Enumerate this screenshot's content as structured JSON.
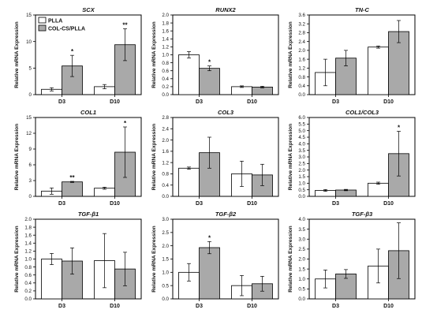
{
  "legend": {
    "series": [
      {
        "name": "PLLA",
        "color": "#ffffff"
      },
      {
        "name": "COL-CS/PLLA",
        "color": "#a9a9a9"
      }
    ]
  },
  "chart_data": [
    {
      "type": "bar",
      "title": "SCX",
      "ylabel": "Relative mRNA Expression",
      "categories": [
        "D3",
        "D10"
      ],
      "ylim": [
        0,
        15
      ],
      "yticks": [
        0,
        5,
        10,
        15
      ],
      "series": [
        {
          "name": "PLLA",
          "values": [
            1.0,
            1.5
          ],
          "errors": [
            0.3,
            0.4
          ]
        },
        {
          "name": "COL-CS/PLLA",
          "values": [
            5.4,
            9.4
          ],
          "errors": [
            2.0,
            3.0
          ]
        }
      ],
      "significance": [
        {
          "category": "D3",
          "label": "*"
        },
        {
          "category": "D10",
          "label": "**"
        }
      ]
    },
    {
      "type": "bar",
      "title": "RUNX2",
      "ylabel": "Relative mRNA Expression",
      "categories": [
        "D3",
        "D10"
      ],
      "ylim": [
        0,
        2.0
      ],
      "yticks": [
        0.0,
        0.2,
        0.4,
        0.6,
        0.8,
        1.0,
        1.2,
        1.4,
        1.6,
        1.8,
        2.0
      ],
      "series": [
        {
          "name": "PLLA",
          "values": [
            1.0,
            0.2
          ],
          "errors": [
            0.08,
            0.02
          ]
        },
        {
          "name": "COL-CS/PLLA",
          "values": [
            0.66,
            0.19
          ],
          "errors": [
            0.06,
            0.02
          ]
        }
      ],
      "significance": [
        {
          "category": "D3",
          "label": "*"
        }
      ]
    },
    {
      "type": "bar",
      "title": "TN-C",
      "ylabel": "Relative mRNA Expression",
      "categories": [
        "D3",
        "D10"
      ],
      "ylim": [
        0,
        3.6
      ],
      "yticks": [
        0.0,
        0.4,
        0.8,
        1.2,
        1.6,
        2.0,
        2.4,
        2.8,
        3.2,
        3.6
      ],
      "series": [
        {
          "name": "PLLA",
          "values": [
            1.0,
            2.15
          ],
          "errors": [
            0.6,
            0.05
          ]
        },
        {
          "name": "COL-CS/PLLA",
          "values": [
            1.65,
            2.85
          ],
          "errors": [
            0.35,
            0.5
          ]
        }
      ],
      "significance": []
    },
    {
      "type": "bar",
      "title": "COL1",
      "ylabel": "Relative mRNA Expression",
      "categories": [
        "D3",
        "D10"
      ],
      "ylim": [
        0,
        15
      ],
      "yticks": [
        0,
        3,
        6,
        9,
        12,
        15
      ],
      "series": [
        {
          "name": "PLLA",
          "values": [
            1.0,
            1.55
          ],
          "errors": [
            0.6,
            0.2
          ]
        },
        {
          "name": "COL-CS/PLLA",
          "values": [
            2.75,
            8.4
          ],
          "errors": [
            0.1,
            4.8
          ]
        }
      ],
      "significance": [
        {
          "category": "D3",
          "label": "**"
        },
        {
          "category": "D10",
          "label": "*"
        }
      ]
    },
    {
      "type": "bar",
      "title": "COL3",
      "ylabel": "Relative mRNA Expression",
      "categories": [
        "D3",
        "D10"
      ],
      "ylim": [
        0,
        2.8
      ],
      "yticks": [
        0.0,
        0.4,
        0.8,
        1.2,
        1.6,
        2.0,
        2.4,
        2.8
      ],
      "series": [
        {
          "name": "PLLA",
          "values": [
            1.0,
            0.8
          ],
          "errors": [
            0.04,
            0.45
          ]
        },
        {
          "name": "COL-CS/PLLA",
          "values": [
            1.55,
            0.76
          ],
          "errors": [
            0.55,
            0.38
          ]
        }
      ],
      "significance": []
    },
    {
      "type": "bar",
      "title": "COL1/COL3",
      "ylabel": "Relative mRNA Expression",
      "categories": [
        "D3",
        "D10"
      ],
      "ylim": [
        0,
        6.0
      ],
      "yticks": [
        0.0,
        0.5,
        1.0,
        1.5,
        2.0,
        2.5,
        3.0,
        3.5,
        4.0,
        4.5,
        5.0,
        5.5,
        6.0
      ],
      "series": [
        {
          "name": "PLLA",
          "values": [
            0.45,
            1.0
          ],
          "errors": [
            0.07,
            0.08
          ]
        },
        {
          "name": "COL-CS/PLLA",
          "values": [
            0.48,
            3.25
          ],
          "errors": [
            0.05,
            1.7
          ]
        }
      ],
      "significance": [
        {
          "category": "D10",
          "label": "*"
        }
      ]
    },
    {
      "type": "bar",
      "title": "TGF-β1",
      "ylabel": "Relative mRNA Expression",
      "categories": [
        "D3",
        "D10"
      ],
      "ylim": [
        0,
        2.0
      ],
      "yticks": [
        0.0,
        0.2,
        0.4,
        0.6,
        0.8,
        1.0,
        1.2,
        1.4,
        1.6,
        1.8,
        2.0
      ],
      "series": [
        {
          "name": "PLLA",
          "values": [
            1.0,
            0.96
          ],
          "errors": [
            0.14,
            0.68
          ]
        },
        {
          "name": "COL-CS/PLLA",
          "values": [
            0.95,
            0.75
          ],
          "errors": [
            0.33,
            0.42
          ]
        }
      ],
      "significance": []
    },
    {
      "type": "bar",
      "title": "TGF-β2",
      "ylabel": "Relative mRNA Expression",
      "categories": [
        "D3",
        "D10"
      ],
      "ylim": [
        0,
        3.0
      ],
      "yticks": [
        0.0,
        0.5,
        1.0,
        1.5,
        2.0,
        2.5,
        3.0
      ],
      "series": [
        {
          "name": "PLLA",
          "values": [
            1.0,
            0.5
          ],
          "errors": [
            0.33,
            0.38
          ]
        },
        {
          "name": "COL-CS/PLLA",
          "values": [
            1.93,
            0.57
          ],
          "errors": [
            0.23,
            0.28
          ]
        }
      ],
      "significance": [
        {
          "category": "D3",
          "label": "*"
        }
      ]
    },
    {
      "type": "bar",
      "title": "TGF-β3",
      "ylabel": "Relative mRNA Expression",
      "categories": [
        "D3",
        "D10"
      ],
      "ylim": [
        0,
        4.0
      ],
      "yticks": [
        0.0,
        0.5,
        1.0,
        1.5,
        2.0,
        2.5,
        3.0,
        3.5,
        4.0
      ],
      "series": [
        {
          "name": "PLLA",
          "values": [
            1.0,
            1.65
          ],
          "errors": [
            0.45,
            0.85
          ]
        },
        {
          "name": "COL-CS/PLLA",
          "values": [
            1.25,
            2.42
          ],
          "errors": [
            0.22,
            1.4
          ]
        }
      ],
      "significance": []
    }
  ]
}
